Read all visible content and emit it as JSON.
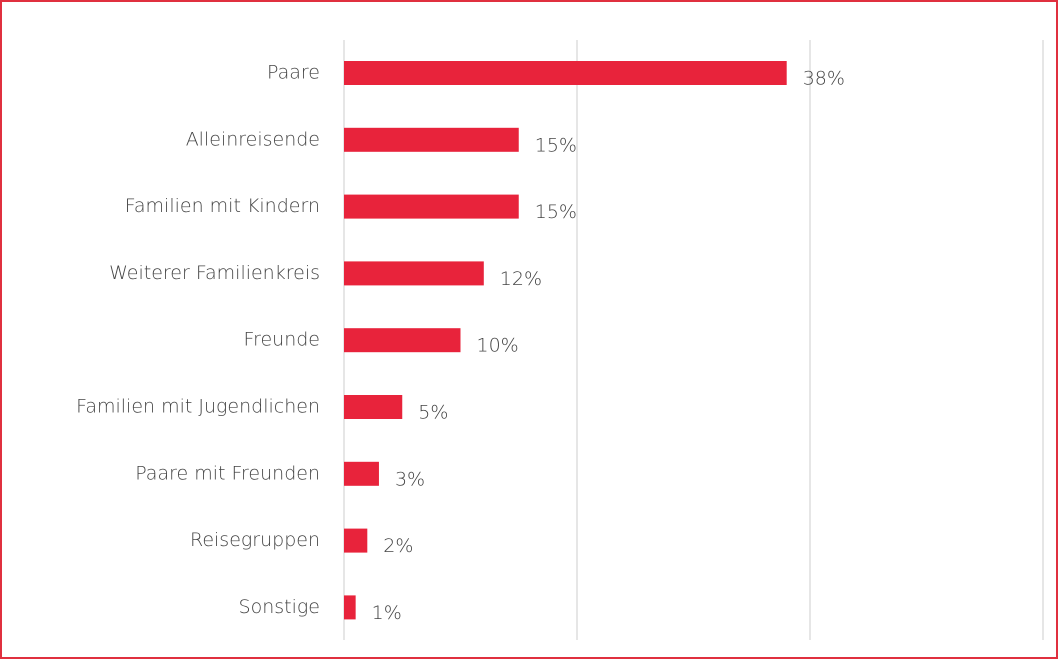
{
  "chart_data": {
    "type": "hbar",
    "categories": [
      "Paare",
      "Alleinreisende",
      "Familien mit Kindern",
      "Weiterer Familienkreis",
      "Freunde",
      "Familien mit Jugendlichen",
      "Paare mit Freunden",
      "Reisegruppen",
      "Sonstige"
    ],
    "values": [
      38,
      15,
      15,
      12,
      10,
      5,
      3,
      2,
      1
    ],
    "value_labels": [
      "38%",
      "15%",
      "15%",
      "12%",
      "10%",
      "5%",
      "3%",
      "2%",
      "1%"
    ],
    "color": "#e8233b",
    "xlim": [
      0,
      60
    ],
    "xticks": [
      0,
      20,
      40,
      60
    ],
    "grid": true
  }
}
